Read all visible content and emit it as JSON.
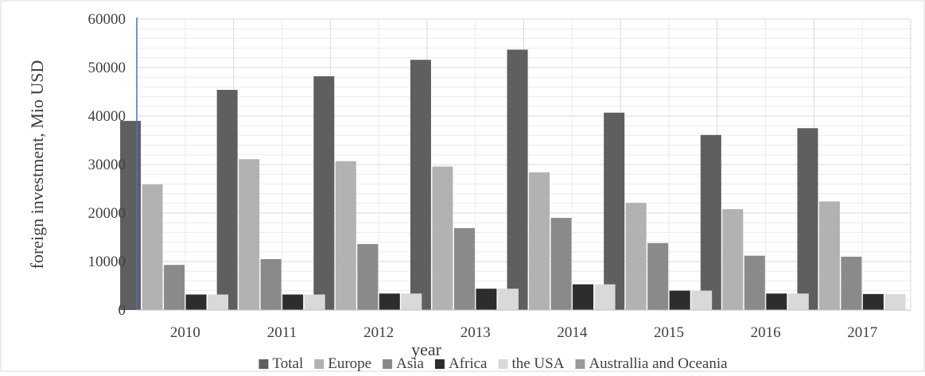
{
  "chart_data": {
    "type": "bar",
    "title": "",
    "xlabel": "year",
    "ylabel": "foreign investment, Mio USD",
    "ylim": [
      0,
      60000
    ],
    "yticks": [
      "0",
      "10000",
      "20000",
      "30000",
      "40000",
      "50000",
      "60000"
    ],
    "categories": [
      "2010",
      "2011",
      "2012",
      "2013",
      "2014",
      "2015",
      "2016",
      "2017"
    ],
    "grid": true,
    "legend_position": "bottom",
    "series": [
      {
        "name": "Total",
        "color": "#5f5f5f",
        "values": [
          39000,
          45400,
          48200,
          51600,
          53700,
          40700,
          36100,
          37500
        ]
      },
      {
        "name": "Europe",
        "color": "#b2b2b2",
        "values": [
          25900,
          31100,
          30700,
          29600,
          28400,
          22100,
          20800,
          22400
        ]
      },
      {
        "name": "Asia",
        "color": "#8a8a8a",
        "values": [
          9300,
          10500,
          13600,
          16900,
          19000,
          13800,
          11200,
          11000
        ]
      },
      {
        "name": "Africa",
        "color": "#2d2d2d",
        "values": [
          3200,
          3200,
          3400,
          4400,
          5300,
          4000,
          3400,
          3300
        ]
      },
      {
        "name": "the USA",
        "color": "#d9d9d9",
        "values": [
          3200,
          3200,
          3400,
          4400,
          5300,
          4000,
          3400,
          3300
        ]
      },
      {
        "name": "Australlia and Oceania",
        "color": "#9a9a9a",
        "values": [
          0,
          0,
          0,
          0,
          0,
          0,
          0,
          0
        ]
      }
    ]
  }
}
